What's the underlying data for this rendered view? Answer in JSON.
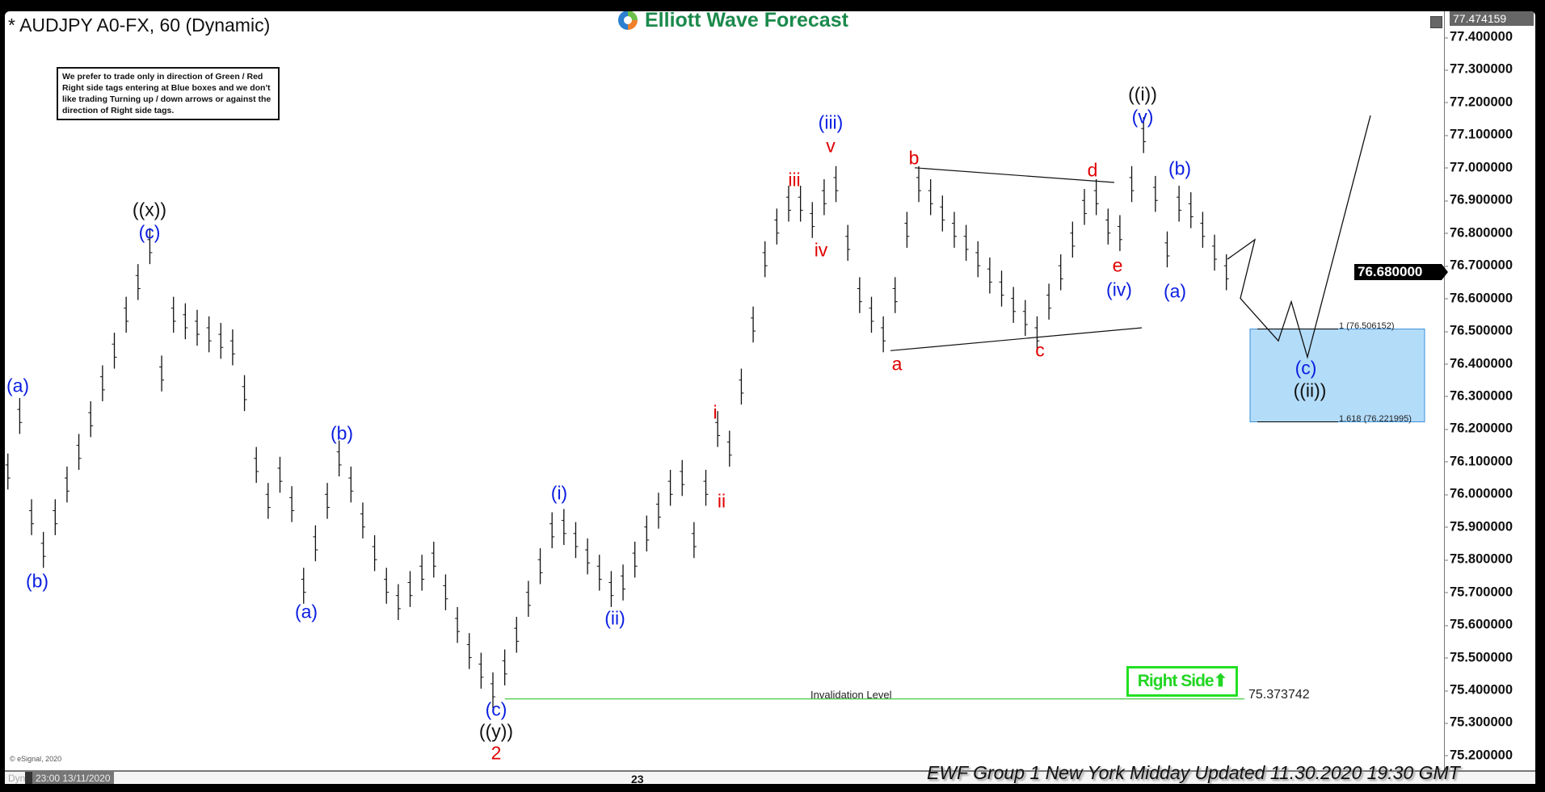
{
  "header": {
    "title": "* AUDJPY A0-FX, 60 (Dynamic)",
    "logo_text": "Elliott Wave Forecast",
    "disclaimer": "We prefer to trade only in direction of Green / Red Right side tags entering at Blue boxes and we don't like trading Turning up / down arrows or against the direction of Right side tags."
  },
  "footer": {
    "update_text": "EWF Group 1 New York Midday Updated 11.30.2020 19:30 GMT",
    "copyright": "© eSignal, 2020",
    "dyn_label": "Dyn",
    "start_date": "23:00 13/11/2020",
    "time_tick": "23"
  },
  "colors": {
    "wave_blue": "#0a1ee0",
    "wave_red": "#e00000",
    "invalidation_green": "#22e022",
    "blue_box": "#b3dcf9",
    "logo_green": "#1b8a4c"
  },
  "chart_data": {
    "type": "bar",
    "symbol": "AUDJPY A0-FX",
    "interval": "60",
    "ylim": [
      75.2,
      77.474159
    ],
    "y_ticks": [
      "77.400000",
      "77.300000",
      "77.200000",
      "77.100000",
      "77.000000",
      "76.900000",
      "76.800000",
      "76.700000",
      "76.600000",
      "76.500000",
      "76.400000",
      "76.300000",
      "76.200000",
      "76.100000",
      "76.000000",
      "75.900000",
      "75.800000",
      "75.700000",
      "75.600000",
      "75.500000",
      "75.400000",
      "75.300000",
      "75.200000"
    ],
    "top_price": "77.474159",
    "last_price": "76.680000",
    "closes": [
      76.07,
      76.24,
      75.93,
      75.83,
      75.93,
      76.03,
      76.13,
      76.23,
      76.34,
      76.44,
      76.55,
      76.65,
      76.76,
      76.37,
      76.55,
      76.53,
      76.51,
      76.49,
      76.47,
      76.45,
      76.31,
      76.09,
      75.98,
      76.06,
      75.97,
      75.72,
      75.85,
      75.98,
      76.11,
      76.03,
      75.92,
      75.82,
      75.72,
      75.67,
      75.71,
      75.76,
      75.8,
      75.7,
      75.6,
      75.52,
      75.46,
      75.4,
      75.47,
      75.57,
      75.68,
      75.78,
      75.89,
      75.9,
      75.86,
      75.81,
      75.76,
      75.71,
      75.73,
      75.8,
      75.88,
      75.95,
      76.02,
      76.05,
      75.86,
      76.02,
      76.2,
      76.14,
      76.33,
      76.52,
      76.72,
      76.82,
      76.89,
      76.89,
      76.84,
      76.91,
      76.95,
      76.77,
      76.61,
      76.55,
      76.49,
      76.61,
      76.81,
      76.95,
      76.91,
      76.86,
      76.81,
      76.77,
      76.72,
      76.67,
      76.63,
      76.58,
      76.54,
      76.49,
      76.59,
      76.68,
      76.78,
      76.88,
      76.91,
      76.82,
      76.8,
      76.95,
      77.1,
      76.92,
      76.75,
      76.89,
      76.87,
      76.81,
      76.74,
      76.68
    ],
    "wave_labels": [
      {
        "text": "(a)",
        "color": "blue"
      },
      {
        "text": "(b)",
        "color": "blue"
      },
      {
        "text": "((x))",
        "color": "black"
      },
      {
        "text": "(c)",
        "color": "blue"
      },
      {
        "text": "(b)",
        "color": "blue"
      },
      {
        "text": "(a)",
        "color": "blue"
      },
      {
        "text": "(c)",
        "color": "blue"
      },
      {
        "text": "((y))",
        "color": "black"
      },
      {
        "text": "2",
        "color": "red"
      },
      {
        "text": "(i)",
        "color": "blue"
      },
      {
        "text": "(ii)",
        "color": "blue"
      },
      {
        "text": "i",
        "color": "red"
      },
      {
        "text": "ii",
        "color": "red"
      },
      {
        "text": "iii",
        "color": "red"
      },
      {
        "text": "iv",
        "color": "red"
      },
      {
        "text": "v",
        "color": "red"
      },
      {
        "text": "(iii)",
        "color": "blue"
      },
      {
        "text": "a",
        "color": "red"
      },
      {
        "text": "b",
        "color": "red"
      },
      {
        "text": "c",
        "color": "red"
      },
      {
        "text": "d",
        "color": "red"
      },
      {
        "text": "e",
        "color": "red"
      },
      {
        "text": "(iv)",
        "color": "blue"
      },
      {
        "text": "((i))",
        "color": "black"
      },
      {
        "text": "(v)",
        "color": "blue"
      },
      {
        "text": "(b)",
        "color": "blue"
      },
      {
        "text": "(a)",
        "color": "blue"
      },
      {
        "text": "(c)",
        "color": "blue"
      },
      {
        "text": "((ii))",
        "color": "black"
      }
    ],
    "blue_box": {
      "top_label": "1 (76.506152)",
      "bottom_label": "1.618 (76.221995)",
      "top": 76.506152,
      "bottom": 76.221995
    },
    "invalidation": {
      "label": "Invalidation Level",
      "price": "75.373742"
    },
    "right_side_tag": "Right Side"
  }
}
